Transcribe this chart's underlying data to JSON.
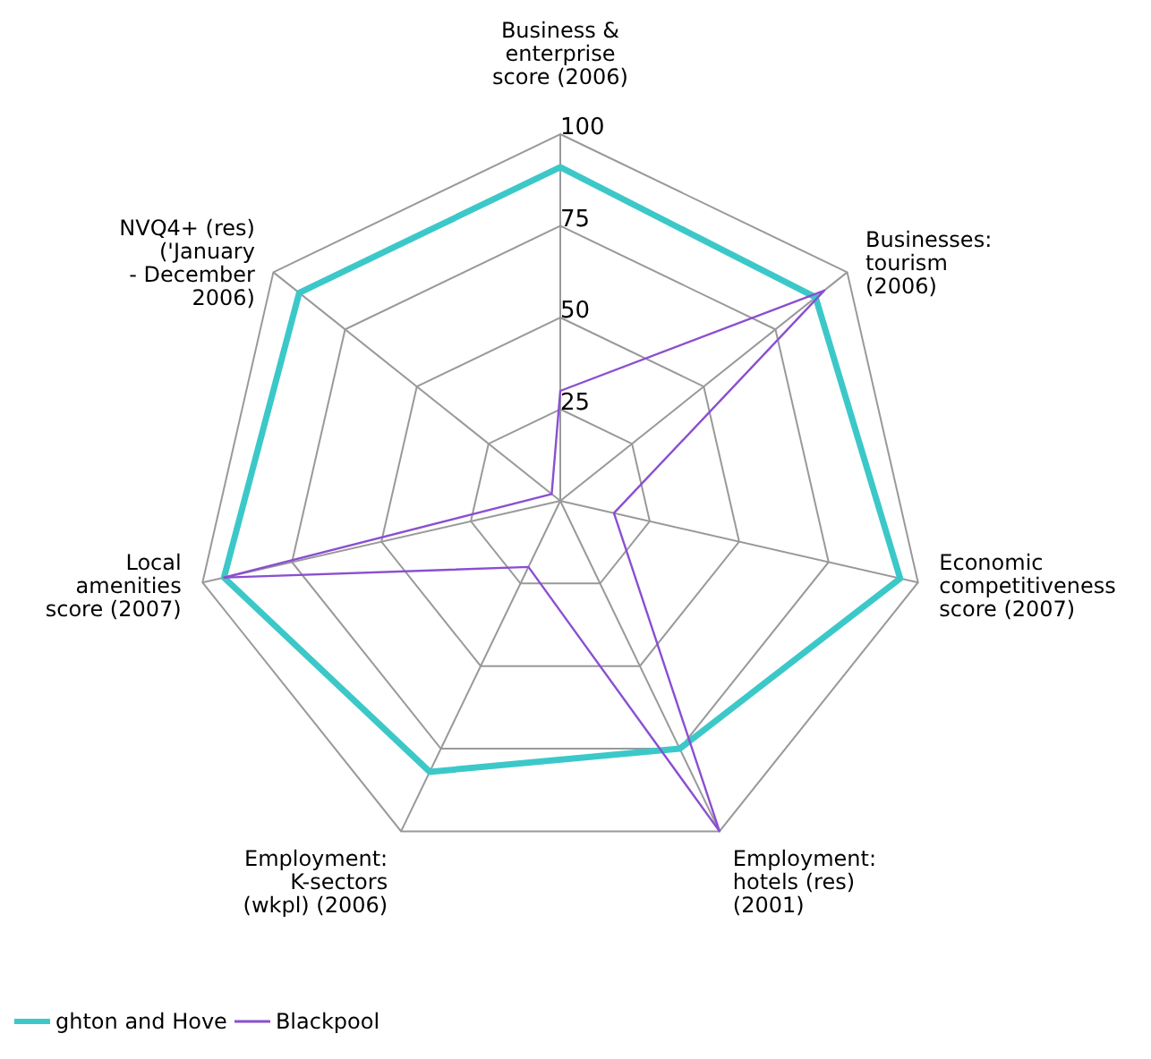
{
  "chart_data": {
    "type": "radar",
    "categories": [
      "Business &\nenterprise\nscore (2006)",
      "Businesses:\ntourism\n(2006)",
      "Economic\ncompetitiveness\nscore (2007)",
      "Employment:\nhotels (res)\n(2001)",
      "Employment:\nK-sectors\n(wkpl) (2006)",
      "Local\namenities\nscore (2007)",
      "NVQ4+ (res)\n('January\n- December\n2006)"
    ],
    "series": [
      {
        "name": "ghton and Hove",
        "color": "#3cc8c8",
        "values": [
          91,
          89,
          95,
          75,
          82,
          94,
          91
        ]
      },
      {
        "name": "Blackpool",
        "color": "#8a4fd0",
        "values": [
          30,
          92,
          15,
          100,
          20,
          94,
          3
        ]
      }
    ],
    "ylim": [
      0,
      100
    ],
    "yticks": [
      25,
      50,
      75,
      100
    ],
    "grid": true,
    "legend": "bottom left",
    "marker": "none"
  }
}
